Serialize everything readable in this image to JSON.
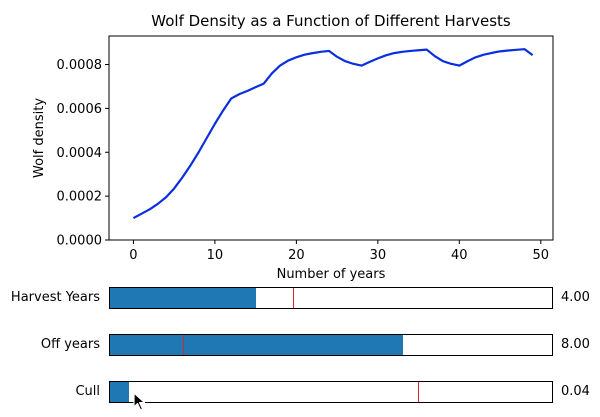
{
  "chart_data": {
    "type": "line",
    "title": "Wolf Density as a Function of Different Harvests",
    "xlabel": "Number of years",
    "ylabel": "Wolf density",
    "xlim": [
      -3,
      51.5
    ],
    "ylim": [
      0,
      0.00093
    ],
    "xticks": [
      0,
      10,
      20,
      30,
      40,
      50
    ],
    "yticks": [
      0.0,
      0.0002,
      0.0004,
      0.0006,
      0.0008
    ],
    "ytick_labels": [
      "0.0000",
      "0.0002",
      "0.0004",
      "0.0006",
      "0.0008"
    ],
    "grid": false,
    "color": "#0b2fde",
    "x": [
      0,
      1,
      2,
      3,
      4,
      5,
      6,
      7,
      8,
      9,
      10,
      11,
      12,
      13,
      14,
      15,
      16,
      17,
      18,
      19,
      20,
      21,
      22,
      23,
      24,
      25,
      26,
      27,
      28,
      29,
      30,
      31,
      32,
      33,
      34,
      35,
      36,
      37,
      38,
      39,
      40,
      41,
      42,
      43,
      44,
      45,
      46,
      47,
      48,
      49
    ],
    "y": [
      0.0001,
      0.00012,
      0.00014,
      0.000165,
      0.000195,
      0.000235,
      0.000285,
      0.00034,
      0.0004,
      0.000465,
      0.00053,
      0.00059,
      0.000645,
      0.000665,
      0.00068,
      0.000697,
      0.000713,
      0.00076,
      0.000795,
      0.000818,
      0.000833,
      0.000845,
      0.000852,
      0.000858,
      0.000862,
      0.000835,
      0.000815,
      0.000803,
      0.000795,
      0.000812,
      0.000828,
      0.000842,
      0.000852,
      0.000858,
      0.000862,
      0.000865,
      0.000868,
      0.000838,
      0.000815,
      0.000803,
      0.000795,
      0.000815,
      0.000833,
      0.000845,
      0.000853,
      0.00086,
      0.000864,
      0.000867,
      0.00087,
      0.000843
    ]
  },
  "sliders": [
    {
      "label": "Harvest Years",
      "value_text": "4.00",
      "fill": 0.33,
      "init": 0.415
    },
    {
      "label": "Off years",
      "value_text": "8.00",
      "fill": 0.664,
      "init": 0.165
    },
    {
      "label": "Cull",
      "value_text": "0.04",
      "fill": 0.042,
      "init": 0.697
    }
  ],
  "cursor_icon": "arrow-pointer-icon",
  "colors": {
    "slider_fill": "#1f77b4",
    "slider_init_line": "#d62728"
  }
}
